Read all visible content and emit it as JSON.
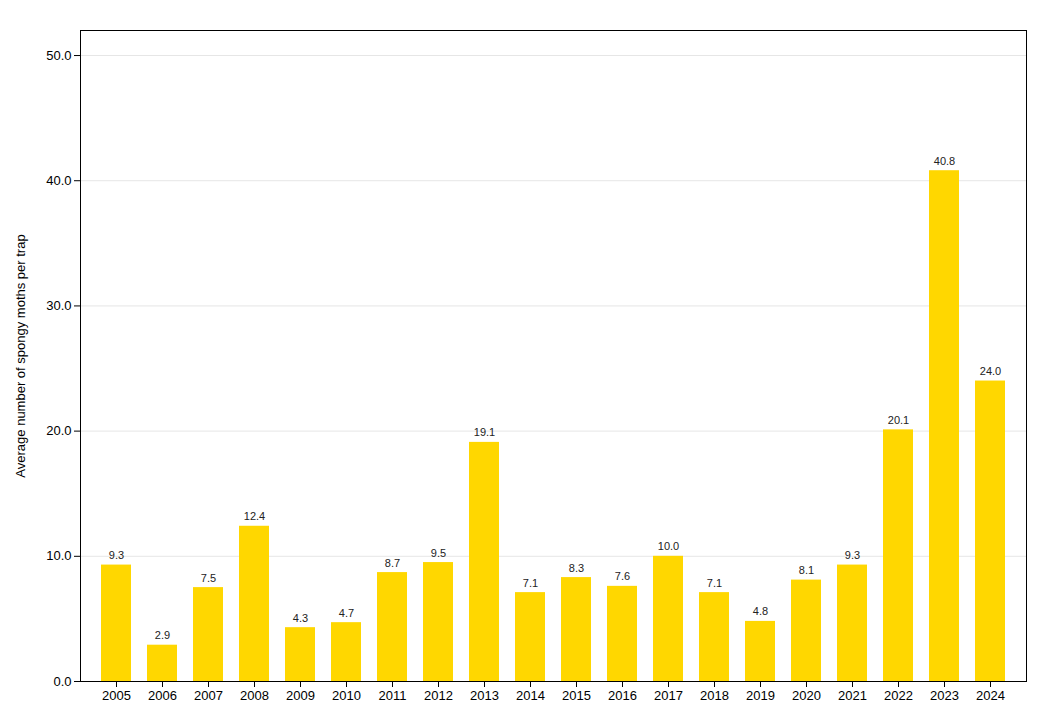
{
  "chart_data": {
    "type": "bar",
    "categories": [
      "2005",
      "2006",
      "2007",
      "2008",
      "2009",
      "2010",
      "2011",
      "2012",
      "2013",
      "2014",
      "2015",
      "2016",
      "2017",
      "2018",
      "2019",
      "2020",
      "2021",
      "2022",
      "2023",
      "2024"
    ],
    "values": [
      9.3,
      2.9,
      7.5,
      12.4,
      4.3,
      4.7,
      8.7,
      9.5,
      19.1,
      7.1,
      8.3,
      7.6,
      10.0,
      7.1,
      4.8,
      8.1,
      9.3,
      20.1,
      40.8,
      24.0
    ],
    "value_labels": [
      "9.3",
      "2.9",
      "7.5",
      "12.4",
      "4.3",
      "4.7",
      "8.7",
      "9.5",
      "19.1",
      "7.1",
      "8.3",
      "7.6",
      "10.0",
      "7.1",
      "4.8",
      "8.1",
      "9.3",
      "20.1",
      "40.8",
      "24.0"
    ],
    "color": "#FFD700",
    "ylabel": "Average number of spongy moths per trap",
    "ylim": [
      0,
      52
    ],
    "yticks": [
      {
        "value": 0,
        "label": "0.0"
      },
      {
        "value": 10,
        "label": "10.0"
      },
      {
        "value": 20,
        "label": "20.0"
      },
      {
        "value": 30,
        "label": "30.0"
      },
      {
        "value": 40,
        "label": "40.0"
      },
      {
        "value": 50,
        "label": "50.0"
      }
    ],
    "grid": true,
    "data_labels": true
  }
}
